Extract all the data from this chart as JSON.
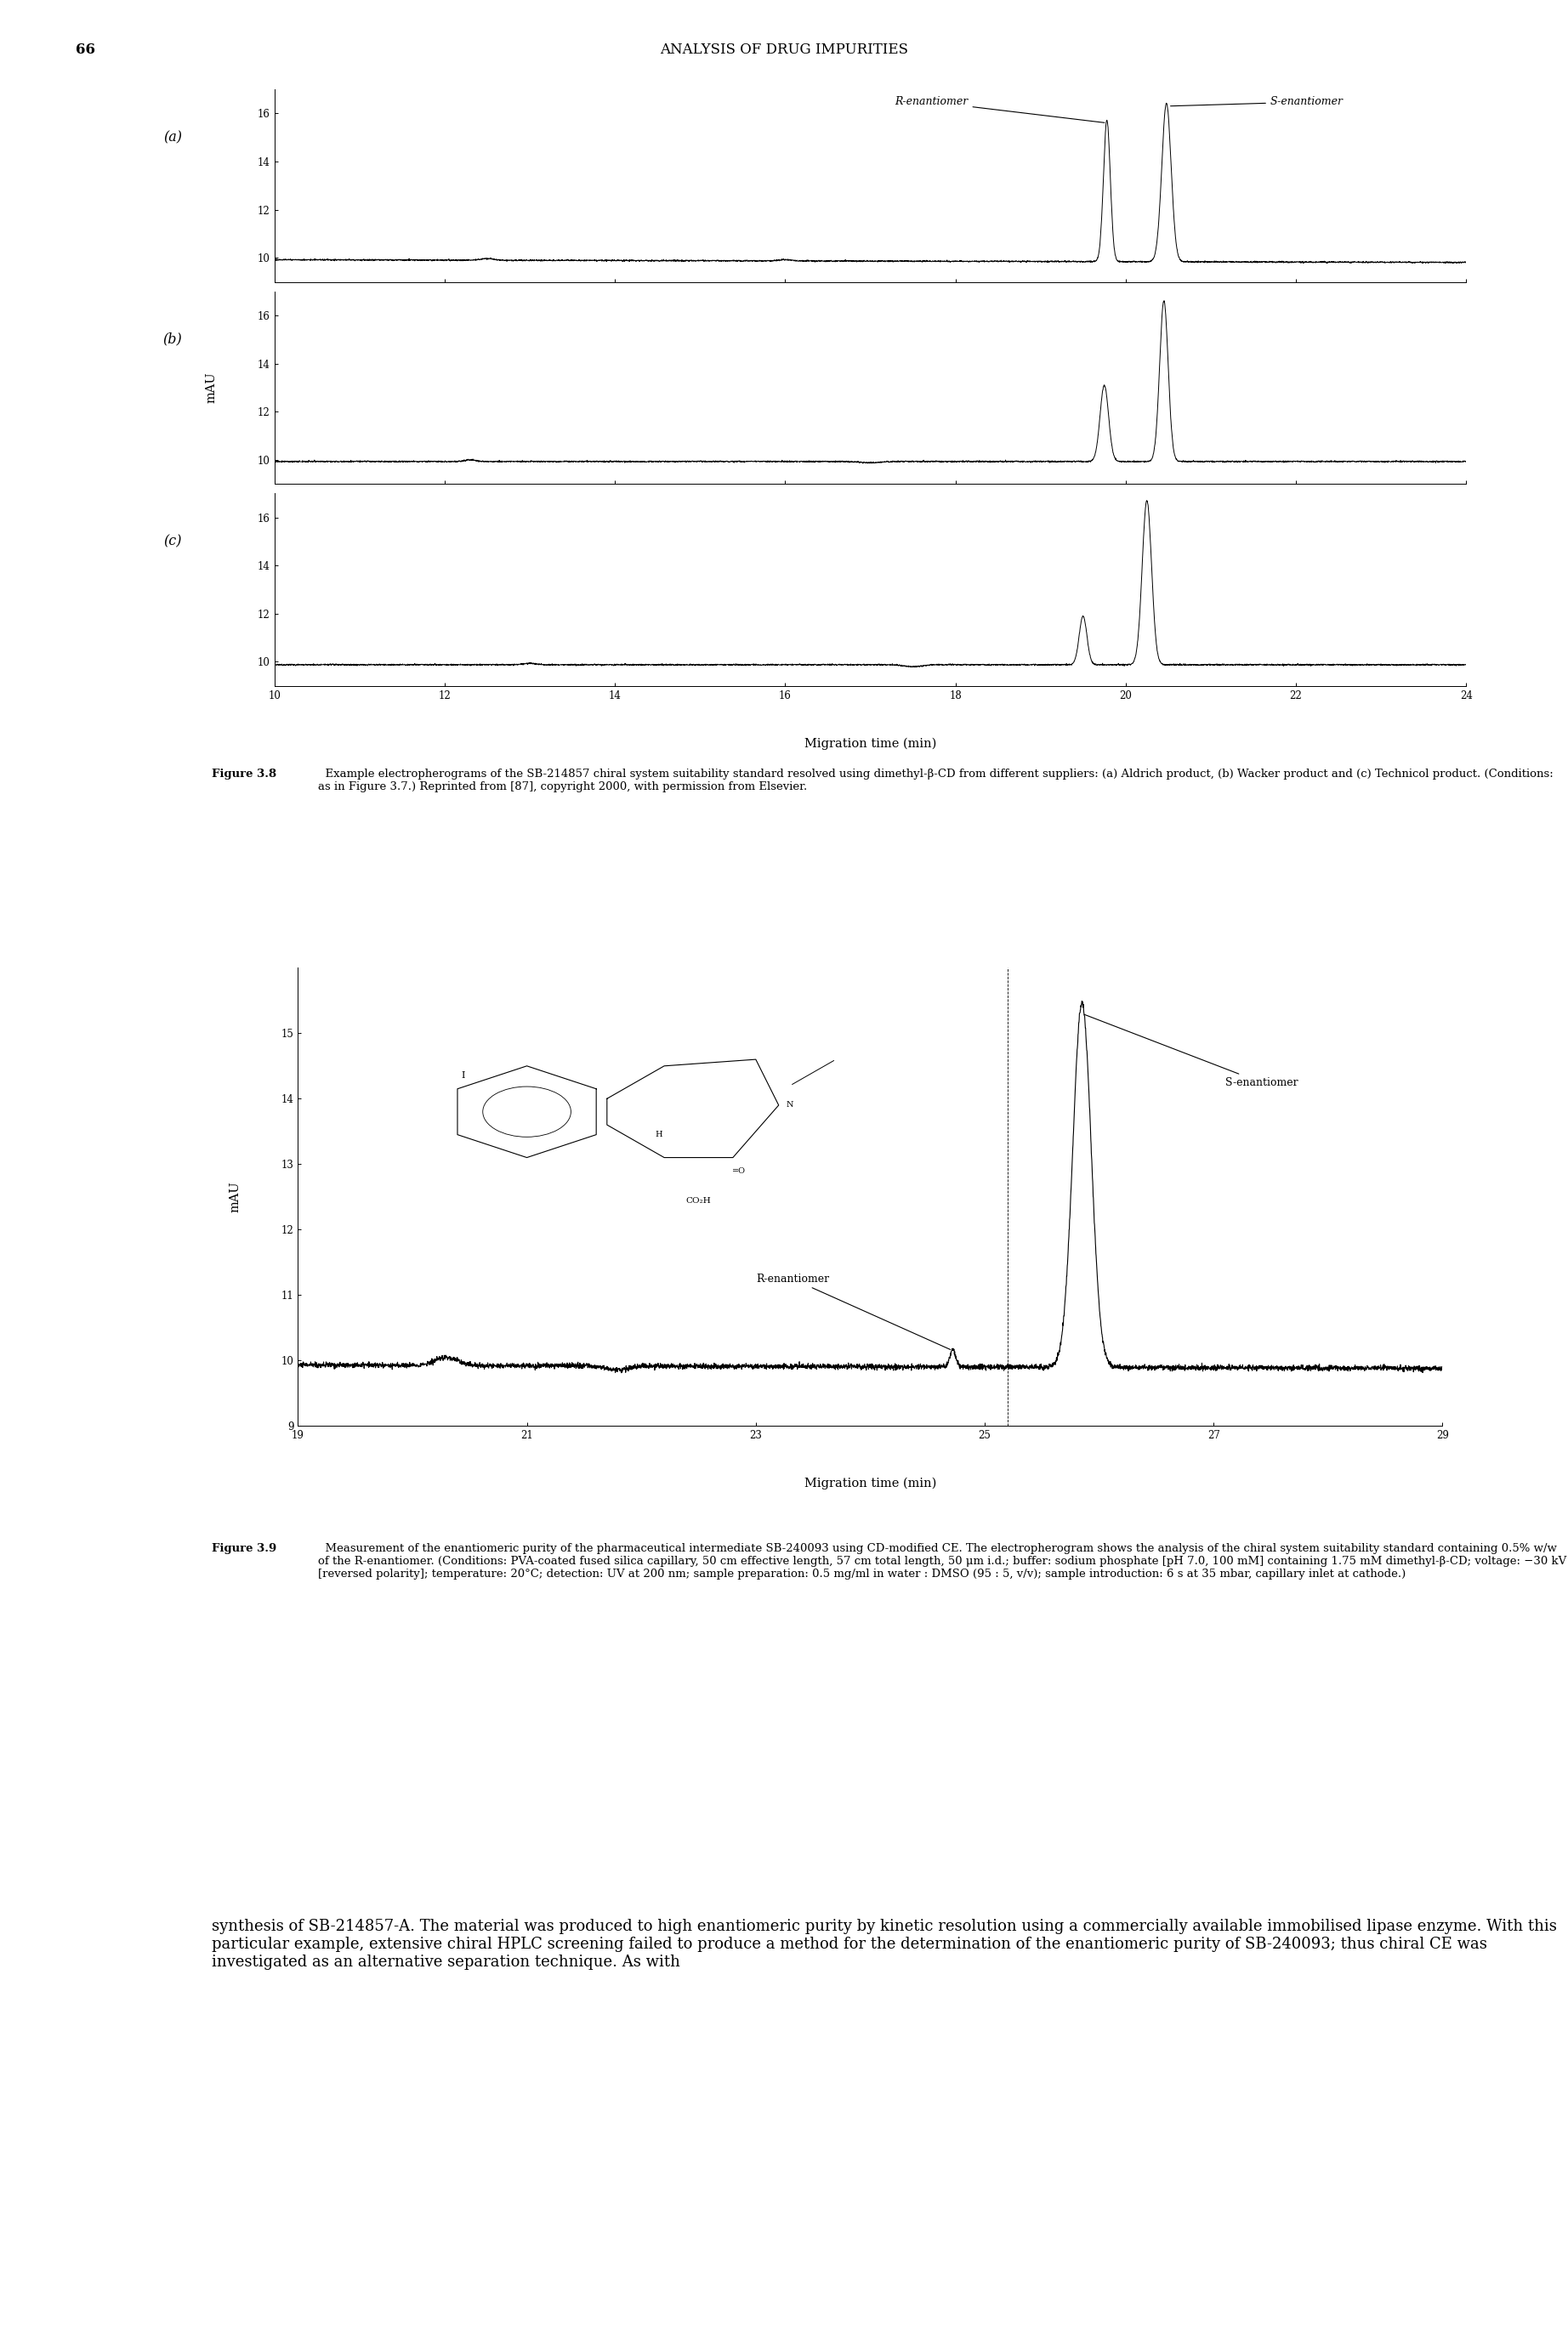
{
  "page_number": "66",
  "page_header": "ANALYSIS OF DRUG IMPURITIES",
  "fig38_caption_bold": "Figure 3.8",
  "fig38_caption_body": "  Example electropherograms of the SB-214857 chiral system suitability standard resolved using dimethyl-β-CD from different suppliers: (a) Aldrich product, (b) Wacker product and (c) Technicol product. (Conditions: as in Figure 3.7.) Reprinted from [87], copyright 2000, with permission from Elsevier.",
  "fig39_caption_bold": "Figure 3.9",
  "fig39_caption_body": "  Measurement of the enantiomeric purity of the pharmaceutical intermediate SB-240093 using CD-modified CE. The electropherogram shows the analysis of the chiral system suitability standard containing 0.5% w/w of the R-enantiomer. (Conditions: PVA-coated fused silica capillary, 50 cm effective length, 57 cm total length, 50 μm i.d.; buffer: sodium phosphate [pH 7.0, 100 mM] containing 1.75 mM dimethyl-β-CD; voltage: −30 kV [reversed polarity]; temperature: 20°C; detection: UV at 200 nm; sample preparation: 0.5 mg/ml in water : DMSO (95 : 5, v/v); sample introduction: 6 s at 35 mbar, capillary inlet at cathode.)",
  "body_text": "synthesis of SB-214857-A. The material was produced to high enantiomeric purity by kinetic resolution using a commercially available immobilised lipase enzyme. With this particular example, extensive chiral HPLC screening failed to produce a method for the determination of the enantiomeric purity of SB-240093; thus chiral CE was investigated as an alternative separation technique. As with",
  "background_color": "#ffffff",
  "line_color": "#000000"
}
